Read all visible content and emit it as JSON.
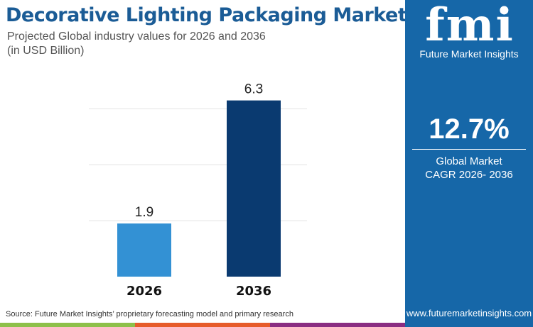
{
  "header": {
    "title": "Decorative Lighting Packaging Market",
    "subtitle_line1": "Projected Global industry values for 2026 and 2036",
    "subtitle_line2": "(in USD Billion)"
  },
  "chart_data": {
    "type": "bar",
    "categories": [
      "2026",
      "2036"
    ],
    "values": [
      1.9,
      6.3
    ],
    "data_labels": [
      "1.9",
      "6.3"
    ],
    "colors": [
      "#3391d4",
      "#0a3a70"
    ],
    "ylim": [
      0,
      7
    ],
    "gridlines": [
      2,
      4,
      6
    ],
    "grid": true,
    "title": "",
    "xlabel": "",
    "ylabel": ""
  },
  "panel": {
    "logo_text": "fmi",
    "brand": "Future Market Insights",
    "cagr_value": "12.7%",
    "cagr_label_line1": "Global Market",
    "cagr_label_line2": "CAGR 2026- 2036",
    "url": "www.futuremarketinsights.com",
    "background": "#1667a8"
  },
  "footer": {
    "source": "Source: Future Market Insights’ proprietary forecasting model and primary research",
    "stripe_colors": [
      "#8dc04a",
      "#e65c2a",
      "#8a2d82"
    ]
  }
}
